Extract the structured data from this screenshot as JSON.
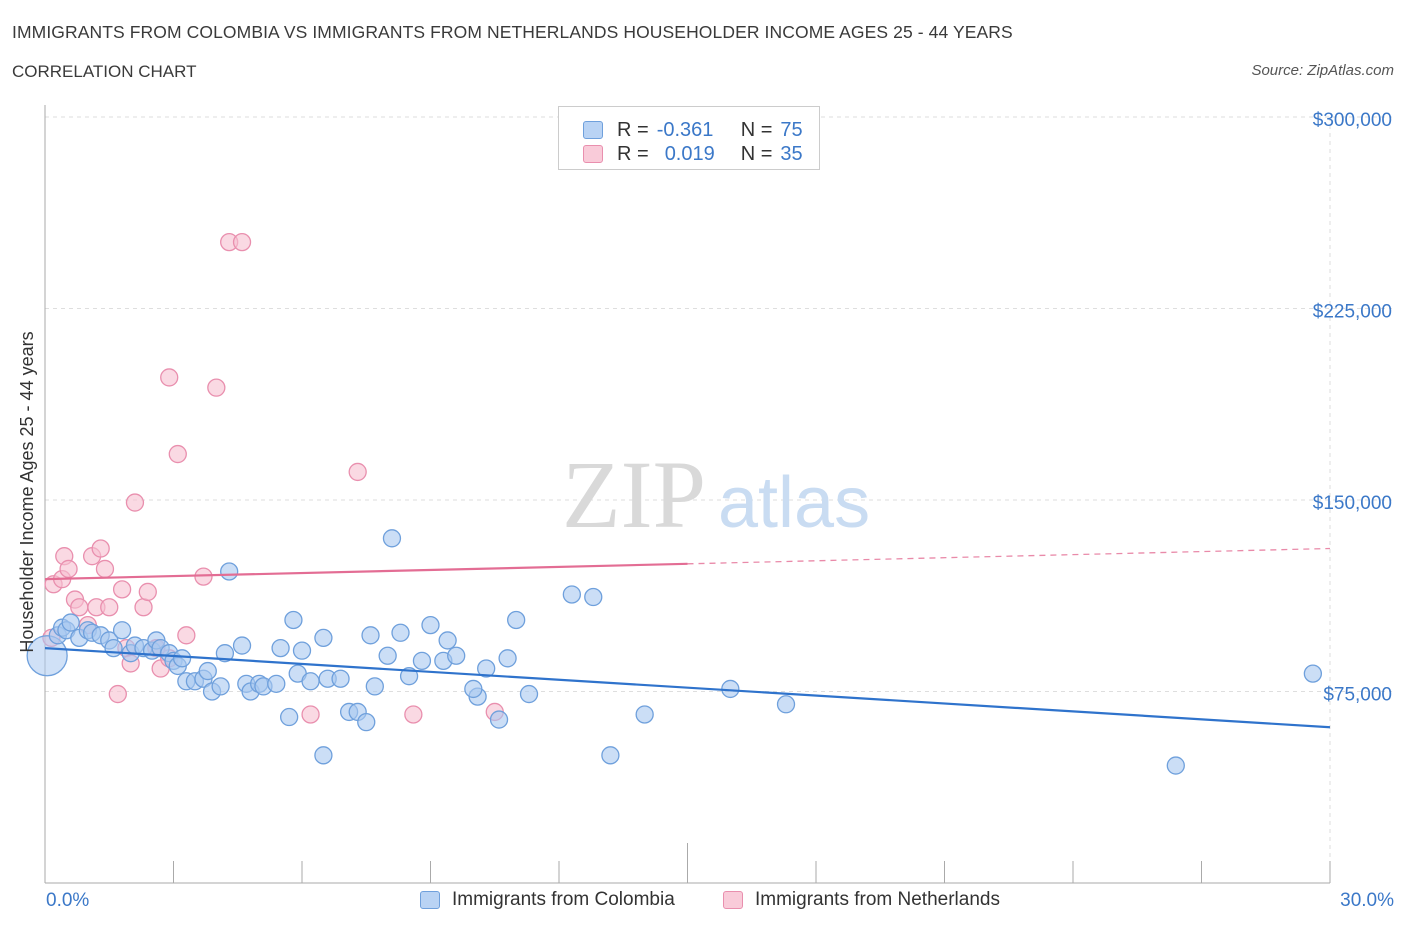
{
  "header": {
    "title": "IMMIGRANTS FROM COLOMBIA VS IMMIGRANTS FROM NETHERLANDS HOUSEHOLDER INCOME AGES 25 - 44 YEARS",
    "subtitle": "CORRELATION CHART",
    "source": "Source: ZipAtlas.com"
  },
  "watermark": {
    "zip": "ZIP",
    "atlas": "atlas"
  },
  "legend_top": {
    "rows": [
      {
        "r_label": "R =",
        "r_value": "-0.361",
        "n_label": "N =",
        "n_value": "75"
      },
      {
        "r_label": "R =",
        "r_value": "0.019",
        "n_label": "N =",
        "n_value": "35"
      }
    ]
  },
  "colors": {
    "colombia_fill": "#a9c8f0",
    "colombia_stroke": "#6fa0dc",
    "colombia_line": "#2f73cc",
    "netherlands_fill": "#f6bfd0",
    "netherlands_stroke": "#e98fae",
    "netherlands_line": "#e36d94",
    "grid": "#dedede",
    "axis_label": "#3b78c8"
  },
  "chart_data": {
    "type": "scatter",
    "title": "IMMIGRANTS FROM COLOMBIA VS IMMIGRANTS FROM NETHERLANDS HOUSEHOLDER INCOME AGES 25 - 44 YEARS",
    "subtitle": "CORRELATION CHART",
    "xlabel": "",
    "ylabel": "Householder Income Ages 25 - 44 years",
    "xlim": [
      0,
      30
    ],
    "ylim": [
      0,
      300000
    ],
    "x_tick_labels": [
      "0.0%",
      "30.0%"
    ],
    "y_ticks": [
      75000,
      150000,
      225000,
      300000
    ],
    "y_tick_labels": [
      "$75,000",
      "$150,000",
      "$225,000",
      "$300,000"
    ],
    "grid": true,
    "legend_position": "bottom",
    "series": [
      {
        "name": "Immigrants from Colombia",
        "color": "#a9c8f0",
        "trend": {
          "x": [
            0,
            30
          ],
          "y": [
            92000,
            61000
          ],
          "style": "solid"
        },
        "points": [
          [
            0.05,
            89000
          ],
          [
            0.3,
            97000
          ],
          [
            0.4,
            100000
          ],
          [
            0.5,
            99000
          ],
          [
            0.6,
            102000
          ],
          [
            0.8,
            96000
          ],
          [
            1.0,
            99000
          ],
          [
            1.1,
            98000
          ],
          [
            1.3,
            97000
          ],
          [
            1.5,
            95000
          ],
          [
            1.6,
            92000
          ],
          [
            1.8,
            99000
          ],
          [
            2.0,
            90000
          ],
          [
            2.1,
            93000
          ],
          [
            2.3,
            92000
          ],
          [
            2.5,
            91000
          ],
          [
            2.6,
            95000
          ],
          [
            2.7,
            92000
          ],
          [
            2.9,
            90000
          ],
          [
            3.0,
            87000
          ],
          [
            3.1,
            85000
          ],
          [
            3.2,
            88000
          ],
          [
            3.3,
            79000
          ],
          [
            3.5,
            79000
          ],
          [
            3.7,
            80000
          ],
          [
            3.8,
            83000
          ],
          [
            3.9,
            75000
          ],
          [
            4.1,
            77000
          ],
          [
            4.2,
            90000
          ],
          [
            4.3,
            122000
          ],
          [
            4.6,
            93000
          ],
          [
            4.7,
            78000
          ],
          [
            4.8,
            75000
          ],
          [
            5.0,
            78000
          ],
          [
            5.1,
            77000
          ],
          [
            5.4,
            78000
          ],
          [
            5.5,
            92000
          ],
          [
            5.7,
            65000
          ],
          [
            5.8,
            103000
          ],
          [
            5.9,
            82000
          ],
          [
            6.0,
            91000
          ],
          [
            6.2,
            79000
          ],
          [
            6.5,
            96000
          ],
          [
            6.6,
            80000
          ],
          [
            6.9,
            80000
          ],
          [
            7.1,
            67000
          ],
          [
            7.3,
            67000
          ],
          [
            7.5,
            63000
          ],
          [
            7.7,
            77000
          ],
          [
            8.0,
            89000
          ],
          [
            8.3,
            98000
          ],
          [
            8.8,
            87000
          ],
          [
            9.3,
            87000
          ],
          [
            9.6,
            89000
          ],
          [
            10.3,
            84000
          ],
          [
            10.6,
            64000
          ],
          [
            10.8,
            88000
          ],
          [
            11.0,
            103000
          ],
          [
            11.3,
            74000
          ],
          [
            12.3,
            113000
          ],
          [
            12.8,
            112000
          ],
          [
            13.2,
            50000
          ],
          [
            14.0,
            66000
          ],
          [
            16.0,
            76000
          ],
          [
            17.3,
            70000
          ],
          [
            26.4,
            46000
          ],
          [
            29.6,
            82000
          ],
          [
            6.5,
            50000
          ],
          [
            8.1,
            135000
          ],
          [
            9.0,
            101000
          ],
          [
            9.4,
            95000
          ],
          [
            10.1,
            73000
          ],
          [
            10.0,
            76000
          ],
          [
            8.5,
            81000
          ],
          [
            7.6,
            97000
          ]
        ]
      },
      {
        "name": "Immigrants from Netherlands",
        "color": "#f6bfd0",
        "trend": {
          "x": [
            0,
            15
          ],
          "y": [
            119000,
            125000
          ],
          "style": "solid",
          "extension": {
            "x": [
              15,
              30
            ],
            "y": [
              125000,
              131000
            ],
            "style": "dashed"
          }
        },
        "points": [
          [
            0.15,
            96000
          ],
          [
            0.2,
            117000
          ],
          [
            0.4,
            119000
          ],
          [
            0.45,
            128000
          ],
          [
            0.55,
            123000
          ],
          [
            0.7,
            111000
          ],
          [
            0.8,
            108000
          ],
          [
            1.0,
            101000
          ],
          [
            1.1,
            128000
          ],
          [
            1.2,
            108000
          ],
          [
            1.3,
            131000
          ],
          [
            1.4,
            123000
          ],
          [
            1.5,
            108000
          ],
          [
            1.7,
            74000
          ],
          [
            1.8,
            115000
          ],
          [
            1.9,
            92000
          ],
          [
            2.0,
            86000
          ],
          [
            2.1,
            149000
          ],
          [
            2.3,
            108000
          ],
          [
            2.4,
            114000
          ],
          [
            2.6,
            92000
          ],
          [
            2.7,
            84000
          ],
          [
            2.9,
            88000
          ],
          [
            2.9,
            198000
          ],
          [
            3.1,
            168000
          ],
          [
            3.3,
            97000
          ],
          [
            3.7,
            120000
          ],
          [
            4.0,
            194000
          ],
          [
            4.3,
            251000
          ],
          [
            4.6,
            251000
          ],
          [
            6.2,
            66000
          ],
          [
            7.3,
            161000
          ],
          [
            8.6,
            66000
          ],
          [
            10.5,
            67000
          ],
          [
            2.6,
            92000
          ]
        ]
      }
    ]
  },
  "bottom_legend": {
    "colombia": "Immigrants from Colombia",
    "netherlands": "Immigrants from Netherlands"
  }
}
